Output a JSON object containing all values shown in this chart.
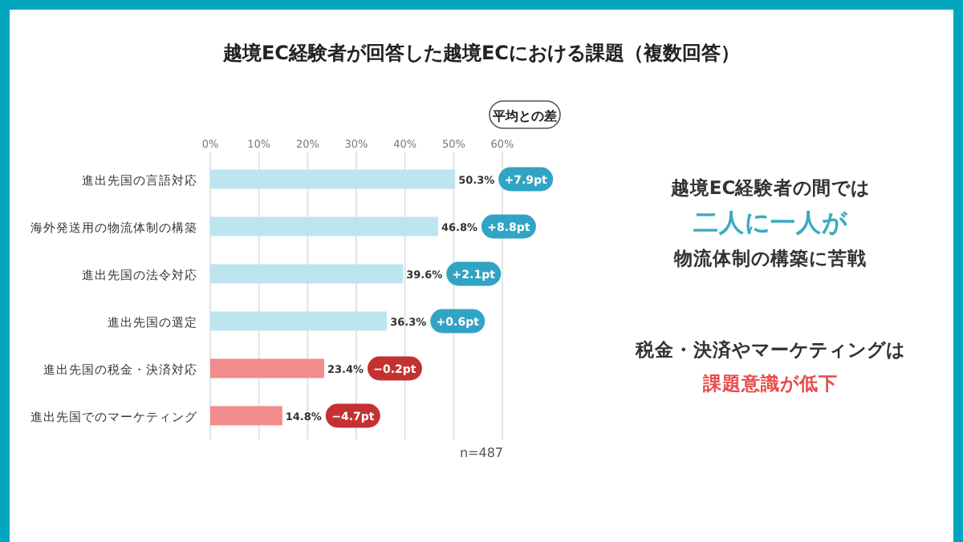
{
  "chart_data": {
    "type": "bar",
    "orientation": "horizontal",
    "title": "越境EC経験者が回答した越境ECにおける課題（複数回答）",
    "categories": [
      "進出先国の言語対応",
      "海外発送用の物流体制の構築",
      "進出先国の法令対応",
      "進出先国の選定",
      "進出先国の税金・決済対応",
      "進出先国でのマーケティング"
    ],
    "series": [
      {
        "values": [
          50.3,
          46.8,
          39.6,
          36.3,
          23.4,
          14.8
        ],
        "colors": [
          "#bde5f0",
          "#bde5f0",
          "#bde5f0",
          "#bde5f0",
          "#f28b8b",
          "#f28b8b"
        ],
        "value_labels": [
          "50.3%",
          "46.8%",
          "39.6%",
          "36.3%",
          "23.4%",
          "14.8%"
        ]
      }
    ],
    "xlim": [
      0,
      60
    ],
    "xticks": [
      {
        "value": 0,
        "label": "0%"
      },
      {
        "value": 10,
        "label": "10%"
      },
      {
        "value": 20,
        "label": "20%"
      },
      {
        "value": 30,
        "label": "30%"
      },
      {
        "value": 40,
        "label": "40%"
      },
      {
        "value": 50,
        "label": "50%"
      },
      {
        "value": 60,
        "label": "60%"
      }
    ],
    "grid": "x",
    "annotations": [
      "+7.9pt",
      "+8.8pt",
      "+2.1pt",
      "+0.6pt",
      "−0.2pt",
      "−4.7pt",
      "平均との差",
      "n=487",
      "越境EC経験者の間では",
      "二人に一人が",
      "物流体制の構築に苦戦",
      "税金・決済やマーケティングは",
      "課題意識が低下"
    ]
  }
}
